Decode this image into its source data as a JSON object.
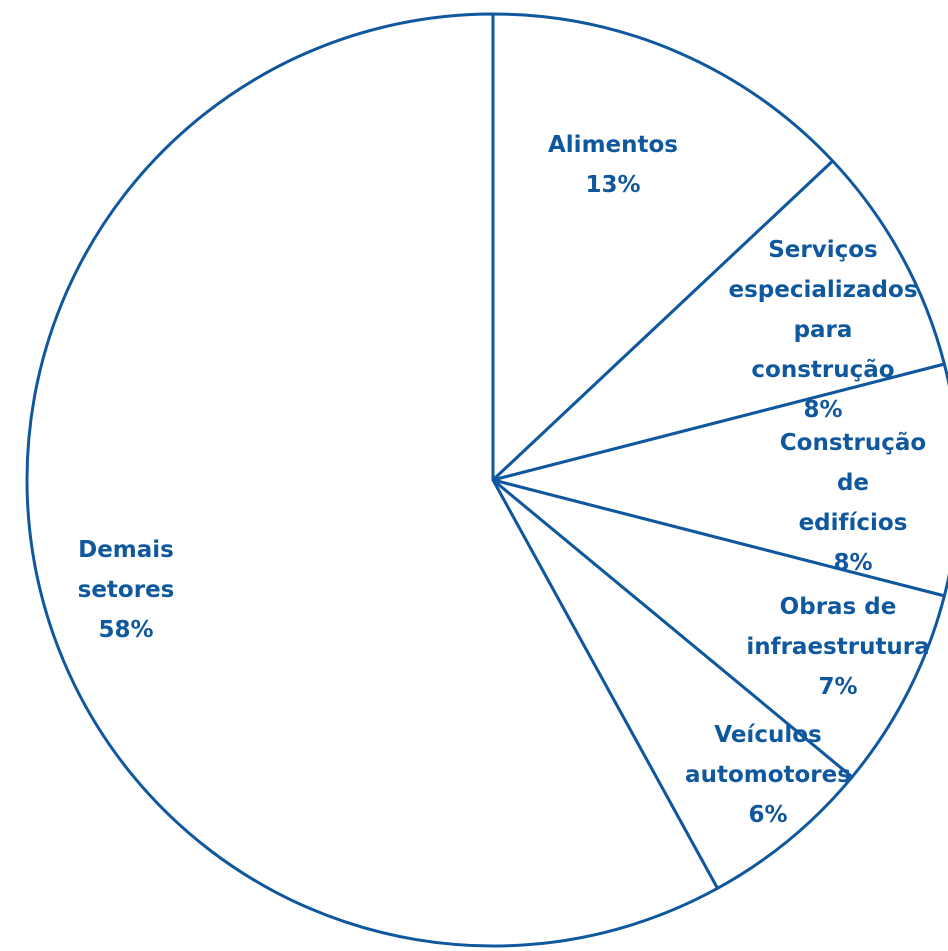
{
  "chart_data": {
    "type": "pie",
    "categories": [
      "Alimentos",
      "Serviços\nespecializados\npara construção",
      "Construção\nde edifícios",
      "Obras de\ninfraestrutura",
      "Veículos\nautomotores",
      "Demais\nsetores"
    ],
    "values": [
      13,
      8,
      8,
      7,
      6,
      58
    ],
    "value_labels": [
      "13%",
      "8%",
      "8%",
      "7%",
      "6%",
      "58%"
    ],
    "color": "#ffffff",
    "edge_color": "#10589e",
    "label_color": "#10589e"
  }
}
